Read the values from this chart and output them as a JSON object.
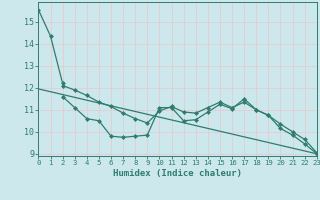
{
  "xlabel": "Humidex (Indice chaleur)",
  "background_color": "#cce8ed",
  "grid_color": "#b8d8de",
  "line_color": "#2e7d6e",
  "xlim": [
    0,
    23
  ],
  "ylim": [
    8.9,
    15.9
  ],
  "yticks": [
    9,
    10,
    11,
    12,
    13,
    14,
    15
  ],
  "xticks": [
    0,
    1,
    2,
    3,
    4,
    5,
    6,
    7,
    8,
    9,
    10,
    11,
    12,
    13,
    14,
    15,
    16,
    17,
    18,
    19,
    20,
    21,
    22,
    23
  ],
  "series": [
    {
      "x": [
        0,
        1,
        2
      ],
      "y": [
        15.55,
        14.35,
        12.2
      ],
      "marker": "D",
      "markersize": 2.0,
      "linewidth": 0.9,
      "linestyle": "-"
    },
    {
      "x": [
        2,
        3,
        4,
        5,
        6,
        7,
        8,
        9,
        10,
        11,
        12,
        13,
        14,
        15,
        16,
        17,
        18,
        19,
        20,
        21,
        22,
        23
      ],
      "y": [
        11.6,
        11.1,
        10.6,
        10.5,
        9.8,
        9.75,
        9.8,
        9.85,
        11.1,
        11.1,
        10.5,
        10.55,
        10.9,
        11.25,
        11.05,
        11.5,
        11.0,
        10.75,
        10.15,
        9.85,
        9.45,
        9.0
      ],
      "marker": "D",
      "markersize": 2.0,
      "linewidth": 0.9,
      "linestyle": "-"
    },
    {
      "x": [
        2,
        3,
        4,
        5,
        6,
        7,
        8,
        9,
        10,
        11,
        12,
        13,
        14,
        15,
        16,
        17,
        18,
        19,
        20,
        21,
        22,
        23
      ],
      "y": [
        12.1,
        11.9,
        11.65,
        11.35,
        11.15,
        10.85,
        10.6,
        10.4,
        10.95,
        11.15,
        10.9,
        10.85,
        11.1,
        11.35,
        11.1,
        11.35,
        11.0,
        10.75,
        10.35,
        10.0,
        9.65,
        9.05
      ],
      "marker": "D",
      "markersize": 2.0,
      "linewidth": 0.9,
      "linestyle": "-"
    },
    {
      "x": [
        0,
        23
      ],
      "y": [
        11.95,
        9.0
      ],
      "marker": null,
      "markersize": 0,
      "linewidth": 0.9,
      "linestyle": "-"
    }
  ]
}
